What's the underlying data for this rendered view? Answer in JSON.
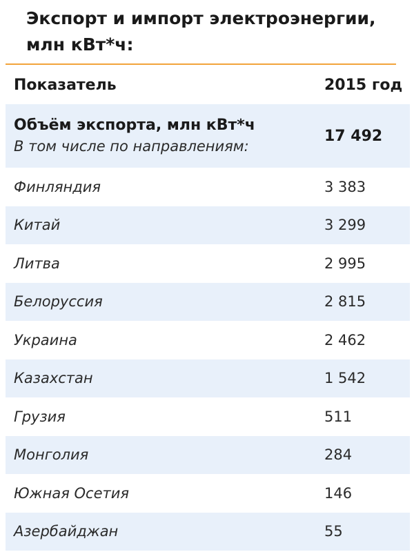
{
  "title": "Экспорт и импорт электроэнергии, млн кВт*ч:",
  "colors": {
    "accent_rule": "#f2a33a",
    "row_shade": "#e8f0fa"
  },
  "table": {
    "headers": {
      "indicator": "Показатель",
      "year": "2015 год"
    },
    "total": {
      "label": "Объём экспорта, млн кВт*ч",
      "sublabel": "В том числе по направлениям:",
      "value": "17 492"
    },
    "rows": [
      {
        "country": "Финляндия",
        "value": "3 383"
      },
      {
        "country": "Китай",
        "value": "3 299"
      },
      {
        "country": "Литва",
        "value": "2 995"
      },
      {
        "country": "Белоруссия",
        "value": "2 815"
      },
      {
        "country": "Украина",
        "value": "2 462"
      },
      {
        "country": "Казахстан",
        "value": "1 542"
      },
      {
        "country": "Грузия",
        "value": "511"
      },
      {
        "country": "Монголия",
        "value": "284"
      },
      {
        "country": "Южная Осетия",
        "value": "146"
      },
      {
        "country": "Азербайджан",
        "value": "55"
      }
    ]
  }
}
